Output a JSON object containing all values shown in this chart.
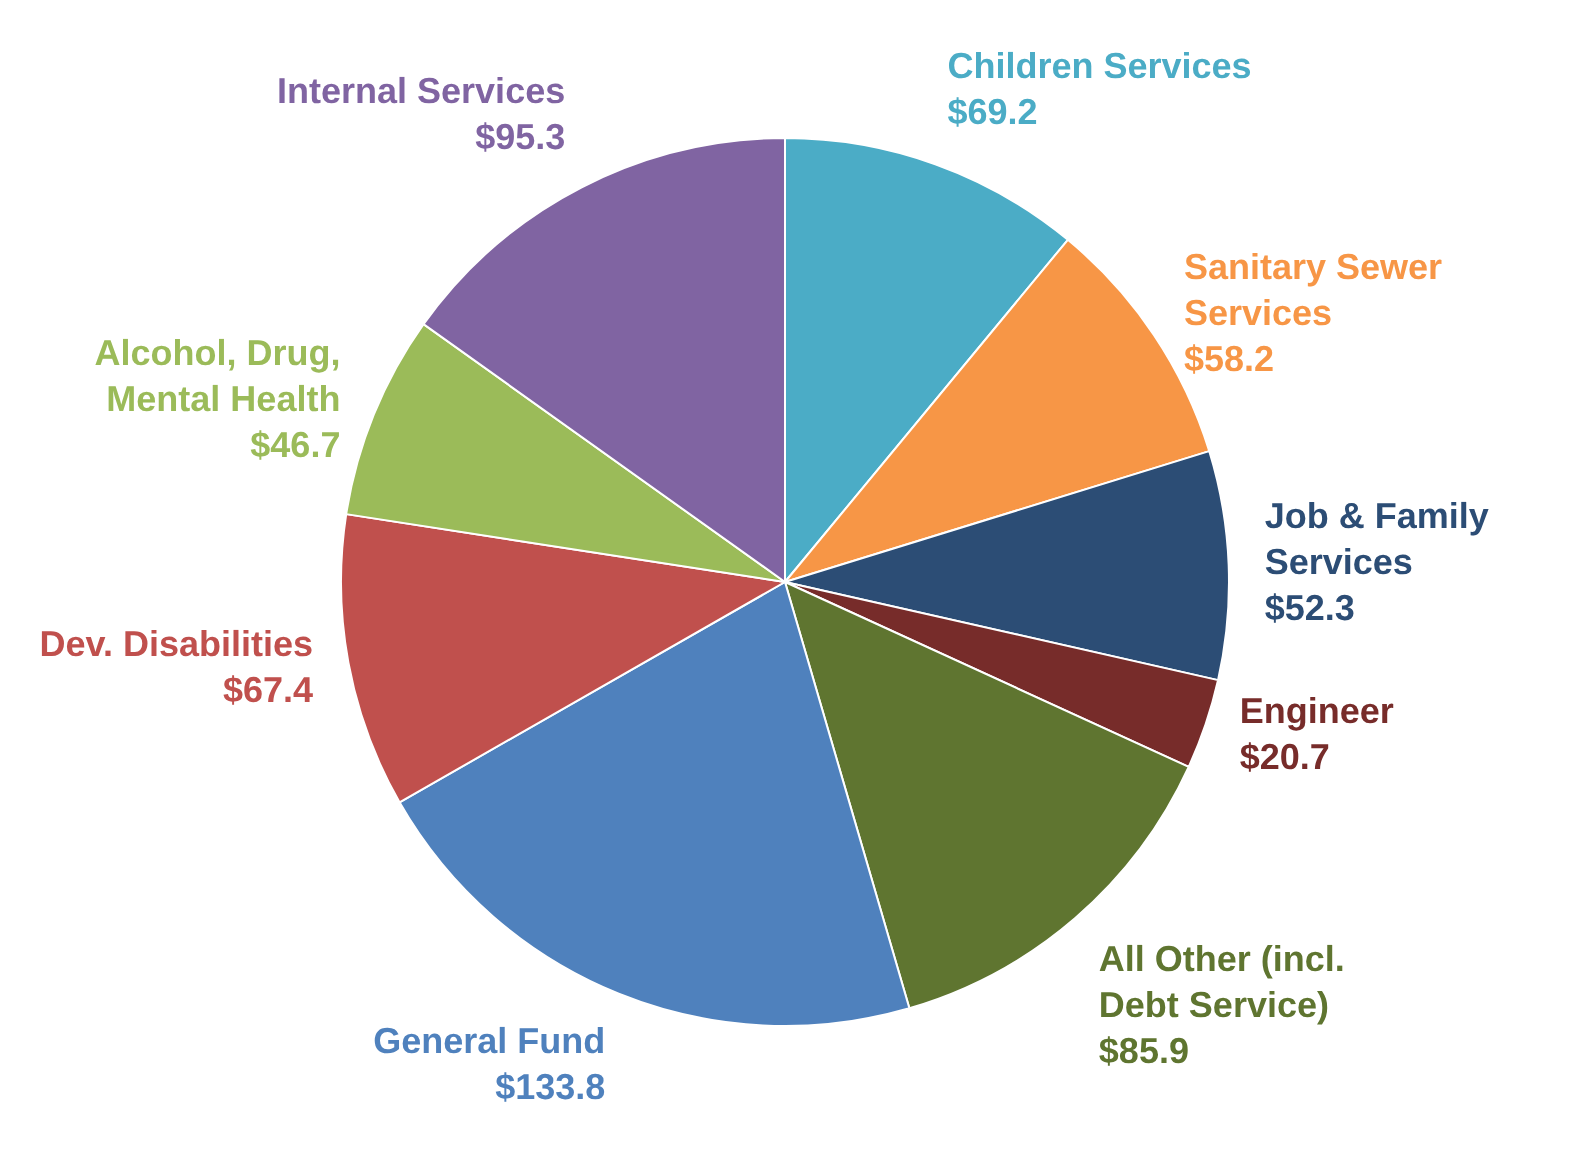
{
  "chart_data": {
    "type": "pie",
    "categories": [
      "Children Services",
      "Sanitary Sewer Services",
      "Job & Family Services",
      "Engineer",
      "All Other (incl. Debt Service)",
      "General Fund",
      "Dev. Disabilities",
      "Alcohol, Drug, Mental Health",
      "Internal Services"
    ],
    "values": [
      69.2,
      58.2,
      52.3,
      20.7,
      85.9,
      133.8,
      67.4,
      46.7,
      95.3
    ],
    "value_labels": [
      "$69.2",
      "$58.2",
      "$52.3",
      "$20.7",
      "$85.9",
      "$133.8",
      "$67.4",
      "$46.7",
      "$95.3"
    ],
    "colors": [
      "#4bacc6",
      "#f79646",
      "#2c4d75",
      "#772c2a",
      "#5f7530",
      "#4f81bd",
      "#c0504d",
      "#9bbb59",
      "#8064a2"
    ],
    "legend": false
  }
}
